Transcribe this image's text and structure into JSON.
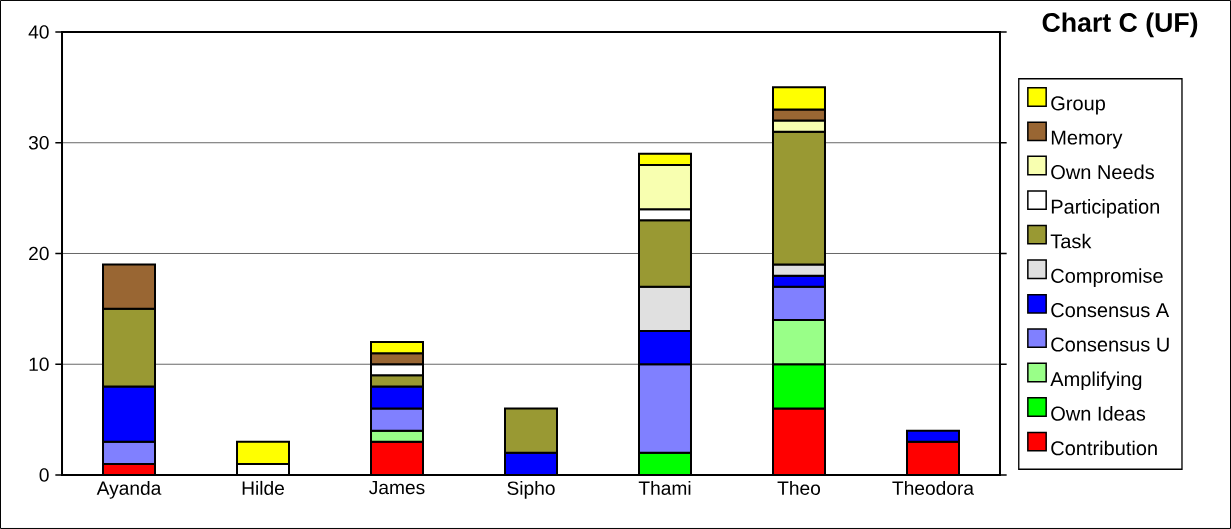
{
  "chart_data": {
    "type": "bar",
    "title": "Chart C (UF)",
    "stacked": true,
    "grid": "y",
    "legend": "right",
    "categories": [
      "Ayanda",
      "Hilde",
      "James",
      "Sipho",
      "Thami",
      "Theo",
      "Theodora"
    ],
    "ylim": [
      0,
      40
    ],
    "yticks": [
      0,
      10,
      20,
      30,
      40
    ],
    "series": [
      {
        "name": "Contribution",
        "color": "#ff0000",
        "values": [
          1,
          null,
          3,
          null,
          null,
          6,
          3
        ]
      },
      {
        "name": "Own Ideas",
        "color": "#00ff00",
        "values": [
          null,
          null,
          null,
          null,
          2,
          4,
          null
        ]
      },
      {
        "name": "Amplifying",
        "color": "#99ff88",
        "values": [
          null,
          null,
          1,
          null,
          null,
          4,
          null
        ]
      },
      {
        "name": "Consensus U",
        "color": "#8080ff",
        "values": [
          2,
          null,
          2,
          null,
          8,
          3,
          null
        ]
      },
      {
        "name": "Consensus A",
        "color": "#0000ff",
        "values": [
          5,
          null,
          2,
          2,
          3,
          1,
          1
        ]
      },
      {
        "name": "Compromise",
        "color": "#e0e0e0",
        "values": [
          null,
          null,
          null,
          null,
          4,
          1,
          null
        ]
      },
      {
        "name": "Task",
        "color": "#999933",
        "values": [
          7,
          null,
          1,
          4,
          6,
          12,
          null
        ]
      },
      {
        "name": "Participation",
        "color": "#ffffff",
        "values": [
          null,
          1,
          1,
          null,
          1,
          null,
          null
        ]
      },
      {
        "name": "Own Needs",
        "color": "#f8ffb0",
        "values": [
          null,
          null,
          null,
          null,
          4,
          1,
          null
        ]
      },
      {
        "name": "Memory",
        "color": "#996633",
        "values": [
          4,
          null,
          1,
          null,
          null,
          1,
          null
        ]
      },
      {
        "name": "Group",
        "color": "#ffff00",
        "values": [
          null,
          2,
          1,
          null,
          1,
          2,
          null
        ]
      }
    ]
  }
}
